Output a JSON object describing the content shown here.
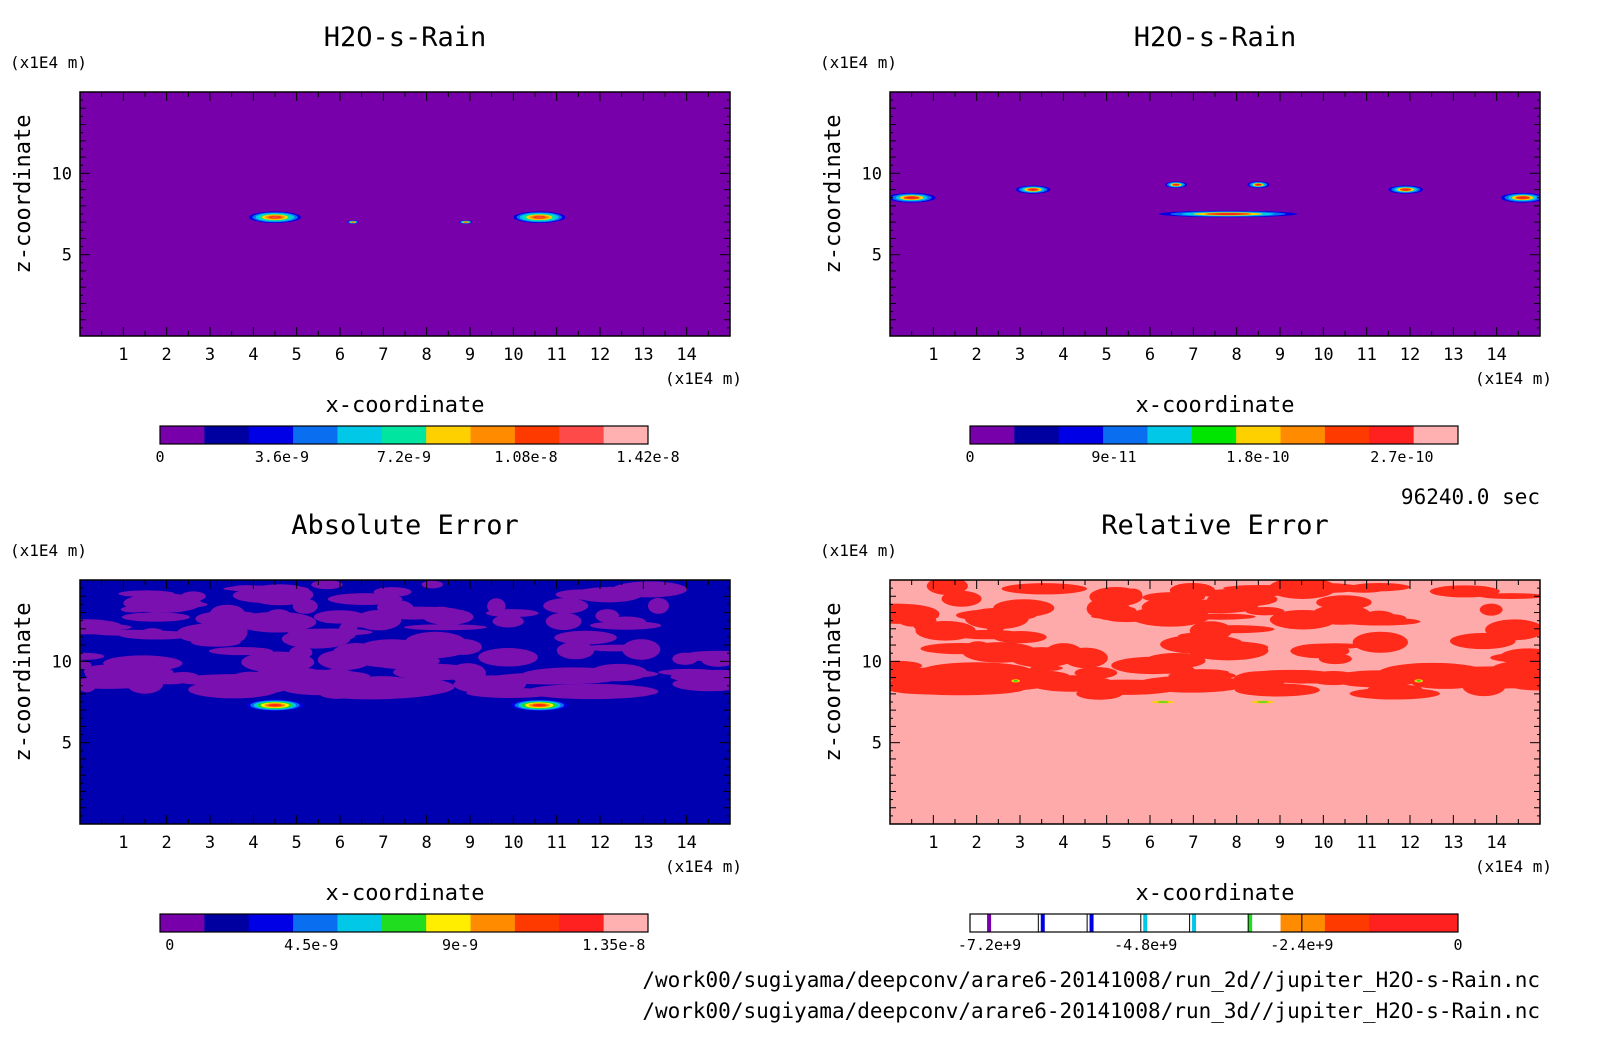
{
  "timestamp": "96240.0 sec",
  "file_paths": [
    "/work00/sugiyama/deepconv/arare6-20141008/run_2d//jupiter_H2O-s-Rain.nc",
    "/work00/sugiyama/deepconv/arare6-20141008/run_3d//jupiter_H2O-s-Rain.nc"
  ],
  "chart_data": [
    {
      "type": "heatmap",
      "title": "H2O-s-Rain",
      "xlabel": "x-coordinate",
      "ylabel": "z-coordinate",
      "x_unit": "(x1E4 m)",
      "y_unit": "(x1E4 m)",
      "x_ticks": [
        "1",
        "2",
        "3",
        "4",
        "5",
        "6",
        "7",
        "8",
        "9",
        "10",
        "11",
        "12",
        "13",
        "14"
      ],
      "y_ticks": [
        "5",
        "10"
      ],
      "xlim": [
        0,
        15
      ],
      "ylim": [
        0,
        15
      ],
      "colorbar": {
        "tick_labels": [
          "0",
          "3.6e-9",
          "7.2e-9",
          "1.08e-8",
          "1.42e-8"
        ],
        "colors": [
          "#7700aa",
          "#0000a0",
          "#0000e6",
          "#0a6ef0",
          "#00c8e6",
          "#00e6a0",
          "#ffd000",
          "#ff8c00",
          "#ff3a00",
          "#ff4a4a",
          "#ffb0b0"
        ]
      },
      "background_color": "#7700aa",
      "features": [
        {
          "x": 4.5,
          "z": 7.3,
          "w": 1.2,
          "h": 0.7
        },
        {
          "x": 10.6,
          "z": 7.3,
          "w": 1.2,
          "h": 0.7
        },
        {
          "x": 6.3,
          "z": 7.0,
          "w": 0.25,
          "h": 0.2
        },
        {
          "x": 8.9,
          "z": 7.0,
          "w": 0.3,
          "h": 0.2
        }
      ]
    },
    {
      "type": "heatmap",
      "title": "H2O-s-Rain",
      "xlabel": "x-coordinate",
      "ylabel": "z-coordinate",
      "x_unit": "(x1E4 m)",
      "y_unit": "(x1E4 m)",
      "x_ticks": [
        "1",
        "2",
        "3",
        "4",
        "5",
        "6",
        "7",
        "8",
        "9",
        "10",
        "11",
        "12",
        "13",
        "14"
      ],
      "y_ticks": [
        "5",
        "10"
      ],
      "xlim": [
        0,
        15
      ],
      "ylim": [
        0,
        15
      ],
      "colorbar": {
        "tick_labels": [
          "0",
          "9e-11",
          "1.8e-10",
          "2.7e-10"
        ],
        "colors": [
          "#7700aa",
          "#0000a0",
          "#0000e6",
          "#0a6ef0",
          "#00c8e6",
          "#00e600",
          "#ffd000",
          "#ff8c00",
          "#ff3a00",
          "#ff2020",
          "#ffb0b0"
        ]
      },
      "background_color": "#7700aa",
      "features": [
        {
          "x": 0.5,
          "z": 8.5,
          "w": 1.1,
          "h": 0.6
        },
        {
          "x": 3.3,
          "z": 9.0,
          "w": 0.8,
          "h": 0.5
        },
        {
          "x": 6.6,
          "z": 9.3,
          "w": 0.5,
          "h": 0.4
        },
        {
          "x": 8.5,
          "z": 9.3,
          "w": 0.5,
          "h": 0.4
        },
        {
          "x": 11.9,
          "z": 9.0,
          "w": 0.8,
          "h": 0.5
        },
        {
          "x": 14.6,
          "z": 8.5,
          "w": 1.0,
          "h": 0.6
        },
        {
          "x": 7.8,
          "z": 7.5,
          "w": 3.2,
          "h": 0.4
        }
      ]
    },
    {
      "type": "heatmap",
      "title": "Absolute Error",
      "xlabel": "x-coordinate",
      "ylabel": "z-coordinate",
      "x_unit": "(x1E4 m)",
      "y_unit": "(x1E4 m)",
      "x_ticks": [
        "1",
        "2",
        "3",
        "4",
        "5",
        "6",
        "7",
        "8",
        "9",
        "10",
        "11",
        "12",
        "13",
        "14"
      ],
      "y_ticks": [
        "5",
        "10"
      ],
      "xlim": [
        0,
        15
      ],
      "ylim": [
        0,
        15
      ],
      "colorbar": {
        "tick_labels": [
          "0",
          "4.5e-9",
          "9e-9",
          "1.35e-8"
        ],
        "colors": [
          "#7700aa",
          "#0000a0",
          "#0000e6",
          "#0a6ef0",
          "#00c8e6",
          "#20dd20",
          "#ffee00",
          "#ff8c00",
          "#ff3a00",
          "#ff2020",
          "#ffb0b0"
        ]
      },
      "background_color": "#0000b0",
      "features": [
        {
          "x": 4.5,
          "z": 7.3,
          "w": 1.3,
          "h": 0.7
        },
        {
          "x": 10.6,
          "z": 7.3,
          "w": 1.3,
          "h": 0.7
        }
      ]
    },
    {
      "type": "heatmap",
      "title": "Relative Error",
      "xlabel": "x-coordinate",
      "ylabel": "z-coordinate",
      "x_unit": "(x1E4 m)",
      "y_unit": "(x1E4 m)",
      "x_ticks": [
        "1",
        "2",
        "3",
        "4",
        "5",
        "6",
        "7",
        "8",
        "9",
        "10",
        "11",
        "12",
        "13",
        "14"
      ],
      "y_ticks": [
        "5",
        "10"
      ],
      "xlim": [
        0,
        15
      ],
      "ylim": [
        0,
        15
      ],
      "colorbar": {
        "tick_labels": [
          "-7.2e+9",
          "-4.8e+9",
          "-2.4e+9",
          "0"
        ],
        "colors": [
          "#ffffff",
          "#ffffff",
          "#ffffff",
          "#ffffff",
          "#ffffff",
          "#ffffff",
          "#ffffff",
          "#ff8c00",
          "#ff3a00",
          "#ff2020",
          "#ff2020"
        ]
      },
      "background_color": "#ffaaaa",
      "features": [
        {
          "x": 2.9,
          "z": 8.8,
          "w": 0.3,
          "h": 0.3
        },
        {
          "x": 12.2,
          "z": 8.8,
          "w": 0.3,
          "h": 0.3
        },
        {
          "x": 6.3,
          "z": 7.5,
          "w": 0.8,
          "h": 0.25
        },
        {
          "x": 8.6,
          "z": 7.5,
          "w": 0.8,
          "h": 0.25
        }
      ]
    }
  ]
}
